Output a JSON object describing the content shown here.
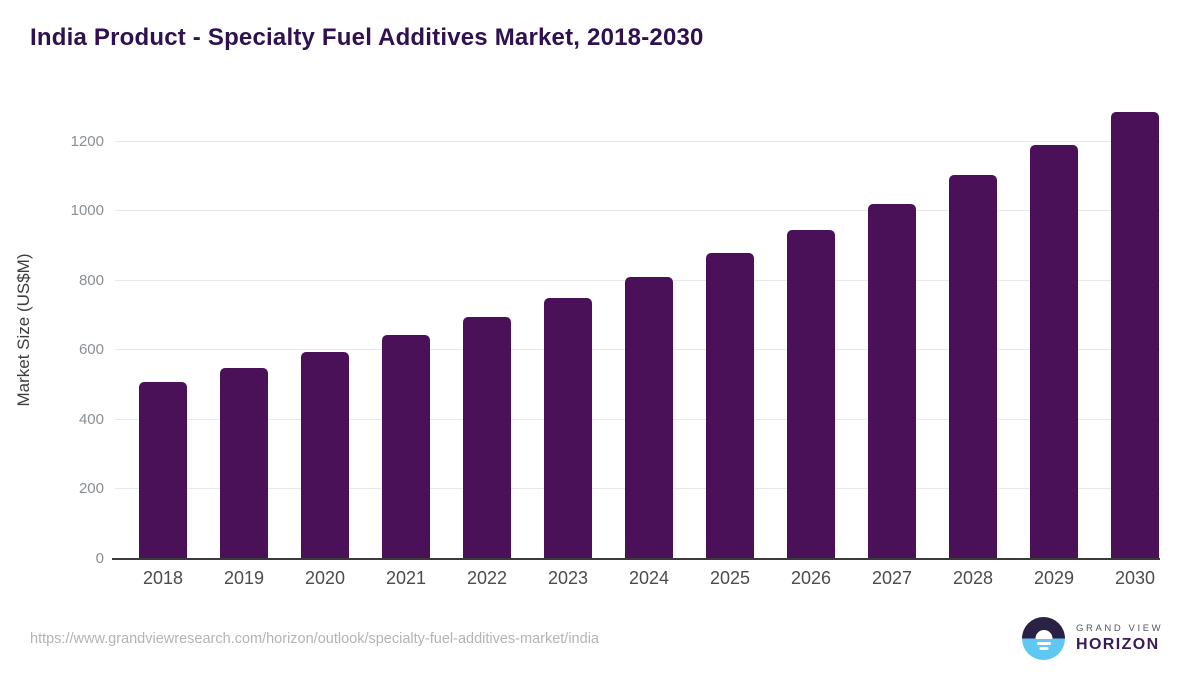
{
  "header": {
    "title": "India Product - Specialty Fuel Additives Market, 2018-2030"
  },
  "chart_data": {
    "type": "bar",
    "title": "India Product - Specialty Fuel Additives Market, 2018-2030",
    "categories": [
      "2018",
      "2019",
      "2020",
      "2021",
      "2022",
      "2023",
      "2024",
      "2025",
      "2026",
      "2027",
      "2028",
      "2029",
      "2030"
    ],
    "values": [
      510,
      550,
      595,
      645,
      695,
      750,
      810,
      880,
      945,
      1020,
      1105,
      1190,
      1285
    ],
    "xlabel": "",
    "ylabel": "Market Size (US$M)",
    "yticks": [
      0,
      200,
      400,
      600,
      800,
      1000,
      1200
    ],
    "ylim": [
      0,
      1320
    ],
    "grid": true,
    "legend_position": "none"
  },
  "footer": {
    "source_url": "https://www.grandviewresearch.com/horizon/outlook/specialty-fuel-additives-market/india",
    "logo_line1": "GRAND VIEW",
    "logo_line2": "HORIZON"
  },
  "icons": {
    "logo_mark": "horizon-sunset-circle-icon"
  },
  "colors": {
    "title": "#2f1150",
    "bar": "#4a1158",
    "gridline": "#e8e8ea",
    "axis": "#3a3a3a",
    "tick_label": "#8a8f94",
    "ylabel": "#3d3d3d",
    "xlabel": "#4c4c4c",
    "footer_text": "#b3b3b8",
    "logo_dark": "#2b2145",
    "logo_blue": "#5ec8f2",
    "logo_gray": "#55565a",
    "logo_dark_text": "#3a1b55"
  }
}
